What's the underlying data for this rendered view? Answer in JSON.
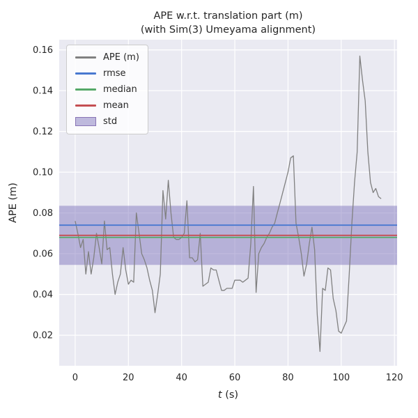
{
  "title": {
    "line1": "APE w.r.t. translation part (m)",
    "line2": "(with Sim(3) Umeyama alignment)"
  },
  "legend": {
    "items": [
      {
        "label": "APE (m)",
        "type": "line",
        "color": "#808080"
      },
      {
        "label": "rmse",
        "type": "line",
        "color": "#4878d0"
      },
      {
        "label": "median",
        "type": "line",
        "color": "#55a868"
      },
      {
        "label": "mean",
        "type": "line",
        "color": "#c44e52"
      },
      {
        "label": "std",
        "type": "patch",
        "color": "#8874b5",
        "fill": "rgba(130,120,190,0.5)"
      }
    ]
  },
  "colors": {
    "figure_bg": "#ffffff",
    "axes_bg": "#eaeaf2",
    "grid": "#ffffff",
    "text": "#262626",
    "ape": "#808080",
    "rmse": "#4878d0",
    "median": "#55a868",
    "mean": "#c44e52",
    "std_fill": "rgba(130,120,190,0.5)"
  },
  "chart_data": {
    "type": "line",
    "title": "APE w.r.t. translation part (m)\n(with Sim(3) Umeyama alignment)",
    "xlabel": "t (s)",
    "ylabel": "APE (m)",
    "xlim": [
      -6,
      121
    ],
    "ylim": [
      0.005,
      0.165
    ],
    "x_ticks": [
      0,
      20,
      40,
      60,
      80,
      100,
      120
    ],
    "y_ticks": [
      0.02,
      0.04,
      0.06,
      0.08,
      0.1,
      0.12,
      0.14,
      0.16
    ],
    "grid": true,
    "legend_entries": [
      "APE (m)",
      "rmse",
      "median",
      "mean",
      "std"
    ],
    "stats": {
      "rmse": 0.074,
      "median": 0.068,
      "mean": 0.069,
      "std": 0.0145,
      "std_low": 0.0545,
      "std_high": 0.0835
    },
    "series": {
      "name": "APE (m)",
      "x": [
        0,
        1,
        2,
        3,
        4,
        5,
        6,
        7,
        8,
        9,
        10,
        11,
        12,
        13,
        14,
        15,
        16,
        17,
        18,
        19,
        20,
        21,
        22,
        23,
        24,
        25,
        26,
        27,
        28,
        29,
        30,
        31,
        32,
        33,
        34,
        35,
        36,
        37,
        38,
        39,
        40,
        41,
        42,
        43,
        44,
        45,
        46,
        47,
        48,
        49,
        50,
        51,
        52,
        53,
        54,
        55,
        56,
        57,
        58,
        59,
        60,
        61,
        62,
        63,
        64,
        65,
        66,
        67,
        68,
        69,
        70,
        71,
        72,
        73,
        74,
        75,
        76,
        77,
        78,
        79,
        80,
        81,
        82,
        83,
        84,
        85,
        86,
        87,
        88,
        89,
        90,
        91,
        92,
        93,
        94,
        95,
        96,
        97,
        98,
        99,
        100,
        101,
        102,
        103,
        104,
        105,
        106,
        107,
        108,
        109,
        110,
        111,
        112,
        113,
        114,
        115
      ],
      "y": [
        0.076,
        0.07,
        0.063,
        0.067,
        0.05,
        0.061,
        0.05,
        0.058,
        0.07,
        0.063,
        0.055,
        0.076,
        0.062,
        0.063,
        0.05,
        0.04,
        0.046,
        0.05,
        0.063,
        0.052,
        0.045,
        0.047,
        0.046,
        0.08,
        0.07,
        0.06,
        0.057,
        0.053,
        0.047,
        0.042,
        0.031,
        0.04,
        0.05,
        0.091,
        0.077,
        0.096,
        0.08,
        0.068,
        0.067,
        0.067,
        0.068,
        0.07,
        0.086,
        0.058,
        0.058,
        0.056,
        0.057,
        0.07,
        0.044,
        0.045,
        0.046,
        0.053,
        0.052,
        0.052,
        0.047,
        0.042,
        0.042,
        0.043,
        0.043,
        0.043,
        0.047,
        0.047,
        0.047,
        0.046,
        0.047,
        0.048,
        0.065,
        0.093,
        0.041,
        0.06,
        0.063,
        0.065,
        0.068,
        0.07,
        0.073,
        0.075,
        0.08,
        0.085,
        0.09,
        0.095,
        0.1,
        0.107,
        0.108,
        0.075,
        0.068,
        0.06,
        0.049,
        0.055,
        0.065,
        0.073,
        0.062,
        0.03,
        0.012,
        0.043,
        0.042,
        0.053,
        0.052,
        0.038,
        0.032,
        0.022,
        0.021,
        0.024,
        0.027,
        0.05,
        0.075,
        0.095,
        0.11,
        0.157,
        0.145,
        0.135,
        0.11,
        0.095,
        0.09,
        0.092,
        0.088,
        0.087
      ]
    }
  }
}
